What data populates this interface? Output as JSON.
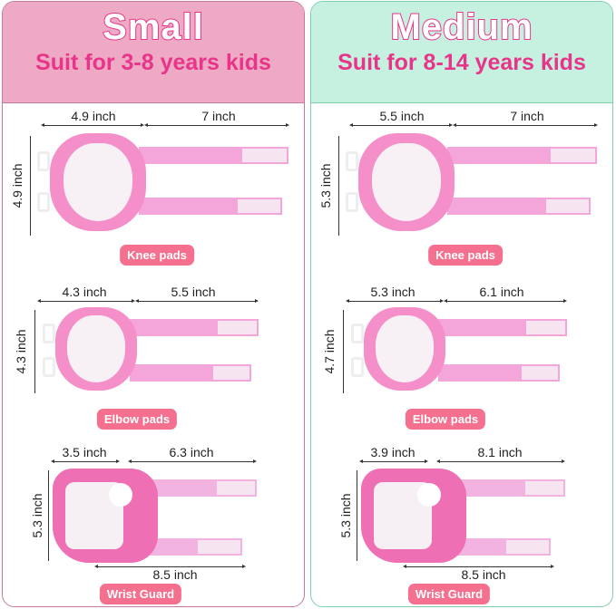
{
  "colors": {
    "accent": "#e8358a",
    "label_bg": "#f5708f"
  },
  "panels": [
    {
      "title": "Small",
      "subtitle": "Suit for 3-8 years kids",
      "header_bg": "#eeaac4",
      "border": "#c27ba0",
      "knee": {
        "width": "4.9 inch",
        "strap": "7 inch",
        "height": "4.9 inch",
        "label": "Knee pads"
      },
      "elbow": {
        "width": "4.3 inch",
        "strap": "5.5 inch",
        "height": "4.3 inch",
        "label": "Elbow pads"
      },
      "wrist": {
        "width": "3.5 inch",
        "strap": "6.3 inch",
        "height": "5.3 inch",
        "length": "8.5 inch",
        "label": "Wrist Guard"
      }
    },
    {
      "title": "Medium",
      "subtitle": "Suit for 8-14 years kids",
      "header_bg": "#c6f1e1",
      "border": "#7fcfa9",
      "knee": {
        "width": "5.5 inch",
        "strap": "7 inch",
        "height": "5.3 inch",
        "label": "Knee pads"
      },
      "elbow": {
        "width": "5.3 inch",
        "strap": "6.1 inch",
        "height": "4.7 inch",
        "label": "Elbow pads"
      },
      "wrist": {
        "width": "3.9 inch",
        "strap": "8.1 inch",
        "height": "5.3 inch",
        "length": "8.5 inch",
        "label": "Wrist Guard"
      }
    }
  ]
}
